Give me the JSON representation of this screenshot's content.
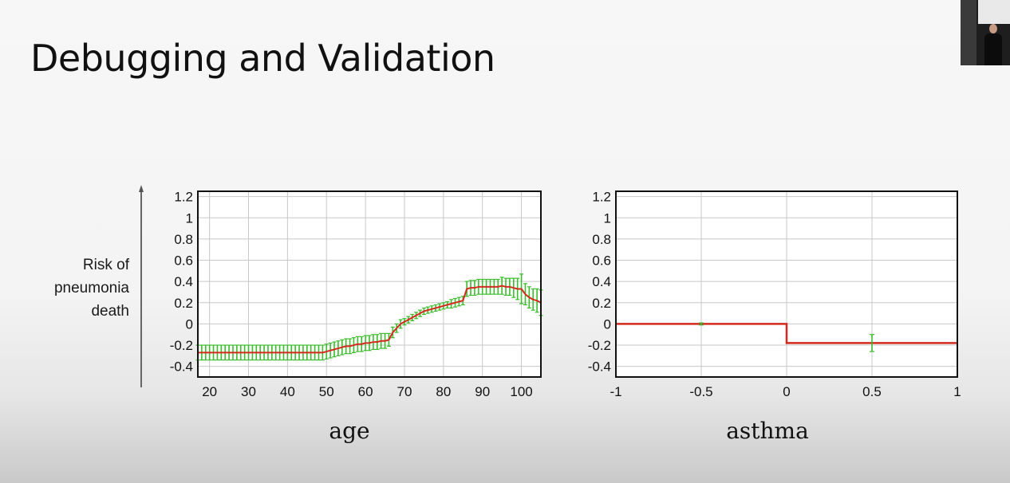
{
  "slide": {
    "title": "Debugging and Validation",
    "y_axis_label": "Risk of\npneumonia\ndeath"
  },
  "colors": {
    "fit_line": "#d42a1e",
    "error_bars": "#3cbc2e",
    "grid": "#c8c8c8"
  },
  "chart_data": [
    {
      "type": "line",
      "xlabel": "age",
      "xlim": [
        17,
        105
      ],
      "ylim": [
        -0.5,
        1.25
      ],
      "xticks": [
        20,
        30,
        40,
        50,
        60,
        70,
        80,
        90,
        100
      ],
      "yticks": [
        1.2,
        1,
        0.8,
        0.6,
        0.4,
        0.2,
        0,
        -0.2,
        -0.4
      ],
      "ytick_labels": [
        "1.2",
        "1",
        "0.8",
        "0.6",
        "0.4",
        "0.2",
        "0",
        "-0.2",
        "-0.4"
      ],
      "grid": true,
      "series": [
        {
          "x": [
            17,
            18,
            19,
            20,
            21,
            22,
            23,
            24,
            25,
            26,
            27,
            28,
            29,
            30,
            31,
            32,
            33,
            34,
            35,
            36,
            37,
            38,
            39,
            40,
            41,
            42,
            43,
            44,
            45,
            46,
            47,
            48,
            49,
            50,
            51,
            52,
            53,
            54,
            55,
            56,
            57,
            58,
            59,
            60,
            61,
            62,
            63,
            64,
            65,
            66,
            67,
            68,
            69,
            70,
            71,
            72,
            73,
            74,
            75,
            76,
            77,
            78,
            79,
            80,
            81,
            82,
            83,
            84,
            85,
            86,
            87,
            88,
            89,
            90,
            91,
            92,
            93,
            94,
            95,
            96,
            97,
            98,
            99,
            100,
            101,
            102,
            103,
            104,
            105
          ],
          "y": [
            -0.27,
            -0.27,
            -0.27,
            -0.27,
            -0.27,
            -0.27,
            -0.27,
            -0.27,
            -0.27,
            -0.27,
            -0.27,
            -0.27,
            -0.27,
            -0.27,
            -0.27,
            -0.27,
            -0.27,
            -0.27,
            -0.27,
            -0.27,
            -0.27,
            -0.27,
            -0.27,
            -0.27,
            -0.27,
            -0.27,
            -0.27,
            -0.27,
            -0.27,
            -0.27,
            -0.27,
            -0.27,
            -0.27,
            -0.26,
            -0.25,
            -0.24,
            -0.23,
            -0.22,
            -0.21,
            -0.21,
            -0.2,
            -0.19,
            -0.19,
            -0.18,
            -0.18,
            -0.17,
            -0.17,
            -0.16,
            -0.16,
            -0.15,
            -0.08,
            -0.04,
            0.0,
            0.02,
            0.04,
            0.06,
            0.08,
            0.1,
            0.12,
            0.13,
            0.14,
            0.15,
            0.16,
            0.17,
            0.18,
            0.19,
            0.2,
            0.21,
            0.22,
            0.33,
            0.34,
            0.34,
            0.35,
            0.35,
            0.35,
            0.35,
            0.35,
            0.35,
            0.36,
            0.35,
            0.35,
            0.34,
            0.33,
            0.33,
            0.28,
            0.25,
            0.23,
            0.22,
            0.2
          ],
          "err": [
            0.07,
            0.07,
            0.07,
            0.07,
            0.07,
            0.07,
            0.07,
            0.07,
            0.07,
            0.07,
            0.07,
            0.07,
            0.07,
            0.07,
            0.07,
            0.07,
            0.07,
            0.07,
            0.07,
            0.07,
            0.07,
            0.07,
            0.07,
            0.07,
            0.07,
            0.07,
            0.07,
            0.07,
            0.07,
            0.07,
            0.07,
            0.07,
            0.07,
            0.07,
            0.07,
            0.07,
            0.07,
            0.07,
            0.07,
            0.07,
            0.07,
            0.07,
            0.07,
            0.07,
            0.07,
            0.07,
            0.07,
            0.07,
            0.07,
            0.06,
            0.05,
            0.04,
            0.04,
            0.03,
            0.03,
            0.03,
            0.03,
            0.03,
            0.03,
            0.03,
            0.03,
            0.03,
            0.03,
            0.03,
            0.03,
            0.04,
            0.04,
            0.04,
            0.04,
            0.07,
            0.07,
            0.07,
            0.07,
            0.07,
            0.07,
            0.07,
            0.07,
            0.07,
            0.08,
            0.08,
            0.08,
            0.09,
            0.1,
            0.14,
            0.1,
            0.1,
            0.1,
            0.11,
            0.12
          ]
        }
      ]
    },
    {
      "type": "line",
      "xlabel": "asthma",
      "xlim": [
        -1,
        1
      ],
      "ylim": [
        -0.5,
        1.25
      ],
      "xticks": [
        -1,
        -0.5,
        0,
        0.5,
        1
      ],
      "xtick_labels": [
        "-1",
        "-0.5",
        "0",
        "0.5",
        "1"
      ],
      "yticks": [
        1.2,
        1,
        0.8,
        0.6,
        0.4,
        0.2,
        0,
        -0.2,
        -0.4
      ],
      "ytick_labels": [
        "1.2",
        "1",
        "0.8",
        "0.6",
        "0.4",
        "0.2",
        "0",
        "-0.2",
        "-0.4"
      ],
      "grid": true,
      "series": [
        {
          "step": [
            [
              -1,
              0
            ],
            [
              0,
              0
            ],
            [
              0,
              -0.18
            ],
            [
              1,
              -0.18
            ]
          ],
          "points": [
            {
              "x": -0.5,
              "y": 0,
              "err": 0.01
            },
            {
              "x": 0.5,
              "y": -0.18,
              "err": 0.08
            }
          ]
        }
      ]
    }
  ]
}
